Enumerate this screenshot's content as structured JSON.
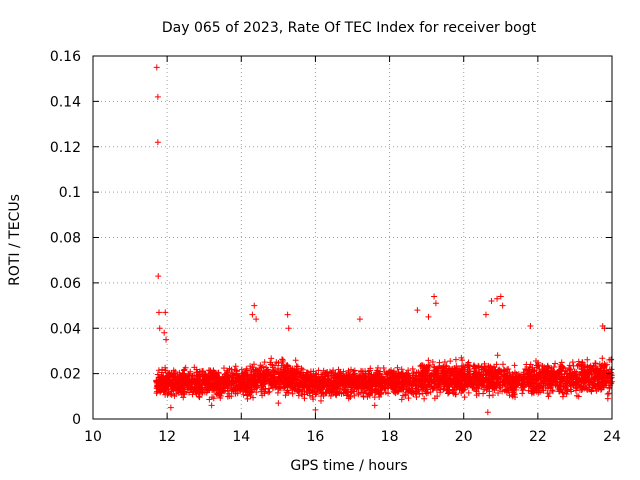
{
  "chart_data": {
    "type": "scatter",
    "title": "Day 065 of 2023, Rate Of TEC Index for receiver bogt",
    "xlabel": "GPS time / hours",
    "ylabel": "ROTI / TECUs",
    "xlim": [
      10,
      24
    ],
    "ylim": [
      0,
      0.16
    ],
    "x_ticks": [
      "10",
      "12",
      "14",
      "16",
      "18",
      "20",
      "22",
      "24"
    ],
    "y_ticks": [
      "0",
      "0.02",
      "0.04",
      "0.06",
      "0.08",
      "0.1",
      "0.12",
      "0.14",
      "0.16"
    ],
    "grid": true,
    "marker": "+",
    "marker_color": "#ff0000",
    "series": [
      {
        "name": "ROTI",
        "description_points": [
          [
            11.72,
            0.155
          ],
          [
            11.75,
            0.142
          ],
          [
            11.75,
            0.122
          ],
          [
            11.76,
            0.063
          ],
          [
            11.78,
            0.047
          ],
          [
            11.95,
            0.047
          ],
          [
            11.8,
            0.04
          ],
          [
            11.92,
            0.038
          ],
          [
            11.97,
            0.035
          ],
          [
            14.35,
            0.05
          ],
          [
            14.3,
            0.046
          ],
          [
            14.4,
            0.044
          ],
          [
            15.25,
            0.046
          ],
          [
            15.28,
            0.04
          ],
          [
            17.2,
            0.044
          ],
          [
            18.75,
            0.048
          ],
          [
            19.2,
            0.054
          ],
          [
            19.25,
            0.051
          ],
          [
            19.05,
            0.045
          ],
          [
            20.75,
            0.052
          ],
          [
            20.9,
            0.053
          ],
          [
            21.0,
            0.054
          ],
          [
            21.05,
            0.05
          ],
          [
            20.6,
            0.046
          ],
          [
            21.8,
            0.041
          ],
          [
            23.75,
            0.041
          ],
          [
            23.8,
            0.04
          ],
          [
            16.15,
            0.008
          ],
          [
            20.65,
            0.003
          ],
          [
            12.1,
            0.005
          ],
          [
            13.2,
            0.006
          ],
          [
            15.0,
            0.007
          ],
          [
            16.0,
            0.004
          ],
          [
            17.6,
            0.006
          ]
        ]
      }
    ],
    "dense_band": {
      "x_start": 11.7,
      "x_end": 24.0,
      "y_min": 0.004,
      "y_max": 0.033,
      "seed": 65
    }
  }
}
